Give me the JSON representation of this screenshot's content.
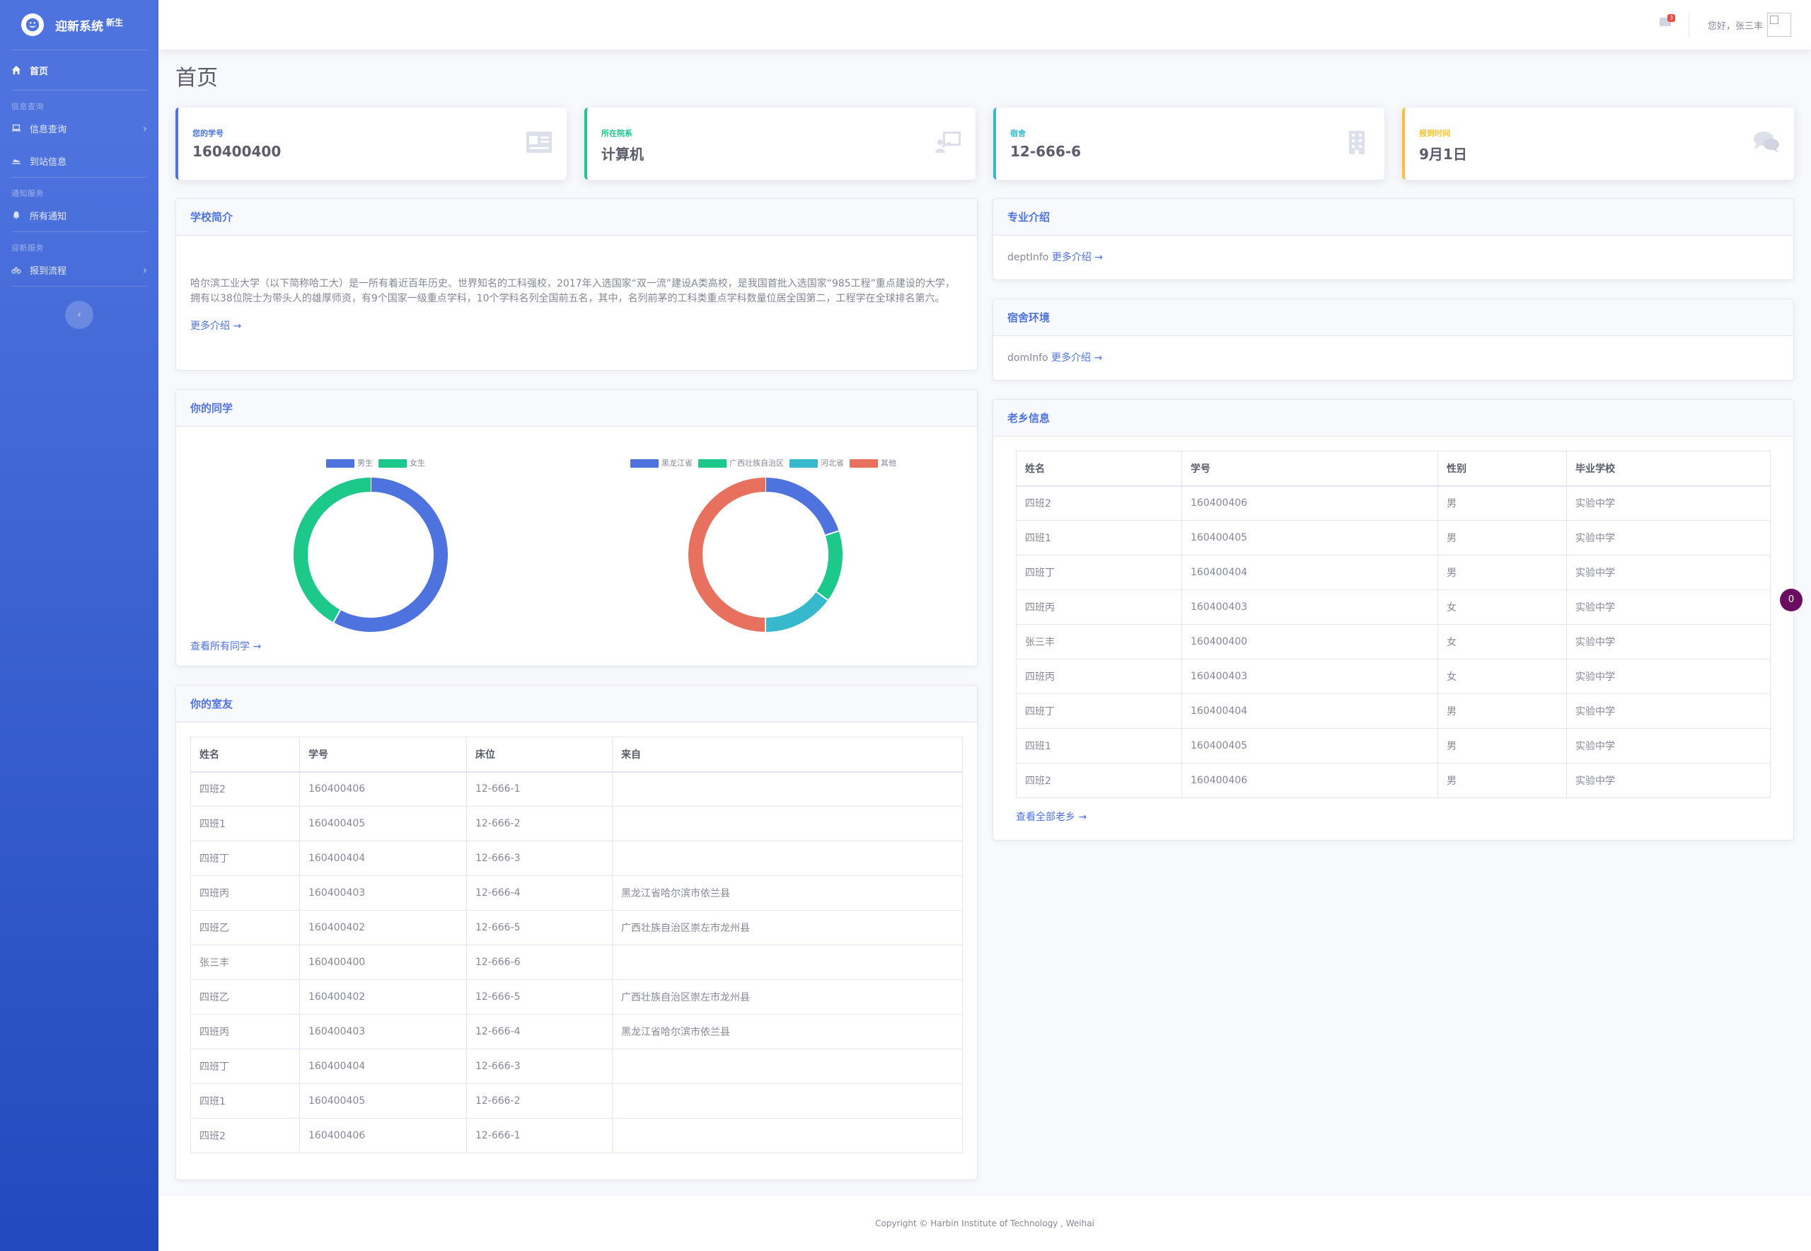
{
  "brand": {
    "title": "迎新系统",
    "sup": "新生"
  },
  "sidebar": {
    "home": "首页",
    "sections": [
      {
        "heading": "信息查询",
        "items": [
          {
            "label": "信息查询",
            "has_chevron": true
          },
          {
            "label": "到站信息",
            "has_chevron": false
          }
        ]
      },
      {
        "heading": "通知服务",
        "items": [
          {
            "label": "所有通知",
            "has_chevron": false
          }
        ]
      },
      {
        "heading": "迎新服务",
        "items": [
          {
            "label": "报到流程",
            "has_chevron": true
          }
        ]
      }
    ],
    "toggle": "‹"
  },
  "topbar": {
    "mail_count": "3",
    "greeting": "您好，张三丰"
  },
  "page_title": "首页",
  "stats": [
    {
      "label": "您的学号",
      "value": "160400400",
      "color": "#4e73df",
      "icon": "id-card-icon"
    },
    {
      "label": "所在院系",
      "value": "计算机",
      "color": "#1cc88a",
      "icon": "chalkboard-teacher-icon"
    },
    {
      "label": "宿舍",
      "value": "12-666-6",
      "color": "#36b9cc",
      "icon": "building-icon"
    },
    {
      "label": "报到时间",
      "value": "9月1日",
      "color": "#f6c23e",
      "icon": "comments-icon"
    }
  ],
  "school_intro": {
    "title": "学校简介",
    "text": "哈尔滨工业大学（以下简称哈工大）是一所有着近百年历史、世界知名的工科强校，2017年入选国家“双一流”建设A类高校，是我国首批入选国家“985工程”重点建设的大学，拥有以38位院士为带头人的雄厚师资，有9个国家一级重点学科，10个学科名列全国前五名，其中，名列前茅的工科类重点学科数量位居全国第二，工程学在全球排名第六。",
    "more": "更多介绍 →"
  },
  "major_intro": {
    "title": "专业介绍",
    "text": "deptInfo",
    "more": "更多介绍 →"
  },
  "dorm_env": {
    "title": "宿舍环境",
    "text": "domInfo",
    "more": "更多介绍 →"
  },
  "classmates": {
    "title": "你的同学",
    "view_all": "查看所有同学 →"
  },
  "chart_data": [
    {
      "type": "pie",
      "donut": true,
      "categories": [
        "男生",
        "女生"
      ],
      "values": [
        58,
        42
      ],
      "colors": [
        "#4e73df",
        "#1cc88a"
      ],
      "legend": "top"
    },
    {
      "type": "pie",
      "donut": true,
      "categories": [
        "黑龙江省",
        "广西壮族自治区",
        "河北省",
        "其他"
      ],
      "values": [
        20,
        15,
        15,
        50
      ],
      "colors": [
        "#4e73df",
        "#1cc88a",
        "#36b9cc",
        "#e8705f"
      ],
      "legend": "top"
    }
  ],
  "roommates": {
    "title": "你的室友",
    "headers": [
      "姓名",
      "学号",
      "床位",
      "来自"
    ],
    "rows": [
      [
        "四班2",
        "160400406",
        "12-666-1",
        ""
      ],
      [
        "四班1",
        "160400405",
        "12-666-2",
        ""
      ],
      [
        "四班丁",
        "160400404",
        "12-666-3",
        ""
      ],
      [
        "四班丙",
        "160400403",
        "12-666-4",
        "黑龙江省哈尔滨市依兰县"
      ],
      [
        "四班乙",
        "160400402",
        "12-666-5",
        "广西壮族自治区崇左市龙州县"
      ],
      [
        "张三丰",
        "160400400",
        "12-666-6",
        ""
      ],
      [
        "四班乙",
        "160400402",
        "12-666-5",
        "广西壮族自治区崇左市龙州县"
      ],
      [
        "四班丙",
        "160400403",
        "12-666-4",
        "黑龙江省哈尔滨市依兰县"
      ],
      [
        "四班丁",
        "160400404",
        "12-666-3",
        ""
      ],
      [
        "四班1",
        "160400405",
        "12-666-2",
        ""
      ],
      [
        "四班2",
        "160400406",
        "12-666-1",
        ""
      ]
    ]
  },
  "hometown": {
    "title": "老乡信息",
    "headers": [
      "姓名",
      "学号",
      "性别",
      "毕业学校"
    ],
    "rows": [
      [
        "四班2",
        "160400406",
        "男",
        "实验中学"
      ],
      [
        "四班1",
        "160400405",
        "男",
        "实验中学"
      ],
      [
        "四班丁",
        "160400404",
        "男",
        "实验中学"
      ],
      [
        "四班丙",
        "160400403",
        "女",
        "实验中学"
      ],
      [
        "张三丰",
        "160400400",
        "女",
        "实验中学"
      ],
      [
        "四班丙",
        "160400403",
        "女",
        "实验中学"
      ],
      [
        "四班丁",
        "160400404",
        "男",
        "实验中学"
      ],
      [
        "四班1",
        "160400405",
        "男",
        "实验中学"
      ],
      [
        "四班2",
        "160400406",
        "男",
        "实验中学"
      ]
    ],
    "view_all": "查看全部老乡 →"
  },
  "float_badge": "0",
  "footer": "Copyright © Harbin Institute of Technology , Weihai"
}
